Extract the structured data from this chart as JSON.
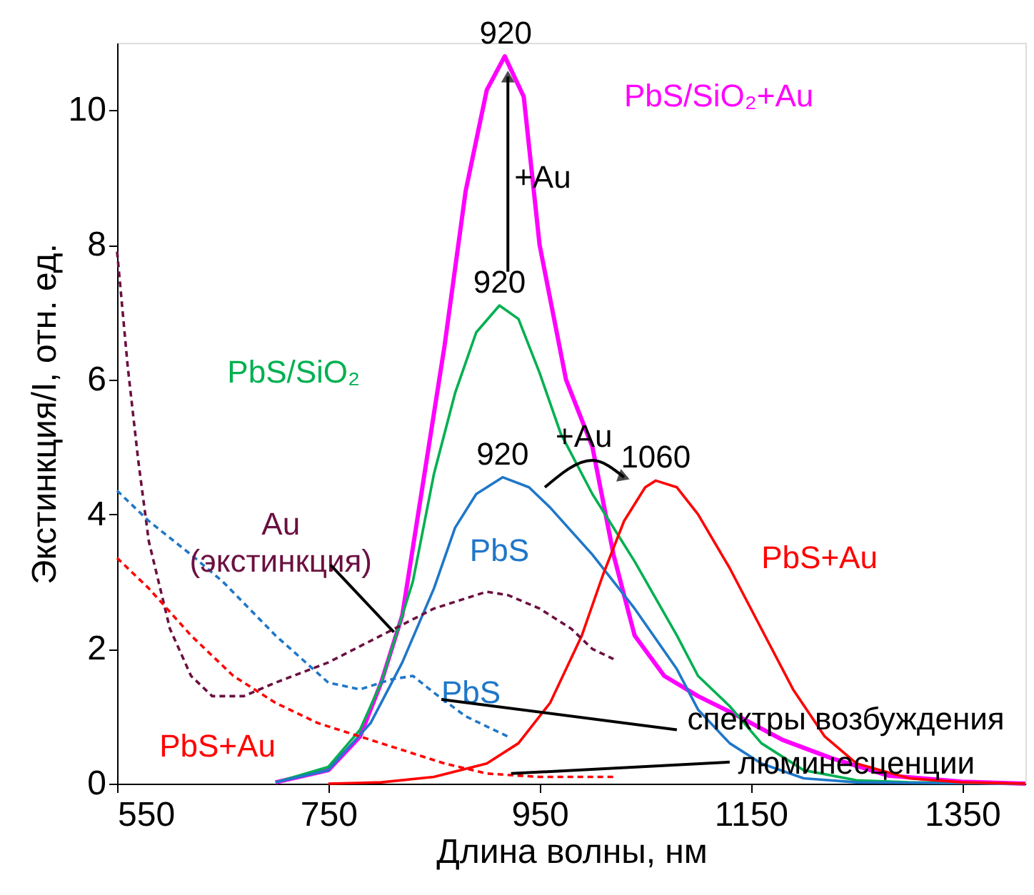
{
  "chart_data": {
    "type": "line",
    "xlabel": "Длина волны, нм",
    "ylabel": "Экстинкция/I, отн. ед.",
    "xlim": [
      550,
      1410
    ],
    "xticks": [
      550,
      750,
      950,
      1150,
      1350
    ],
    "ylim": [
      0,
      11
    ],
    "yticks": [
      0,
      2,
      4,
      6,
      8,
      10
    ],
    "marker": "none",
    "series": [
      {
        "name": "PbS/SiO₂+Au",
        "color": "#ff00ff",
        "line_style": "solid",
        "x": [
          700,
          750,
          780,
          800,
          820,
          845,
          860,
          880,
          900,
          917,
          935,
          950,
          975,
          1000,
          1020,
          1040,
          1068,
          1100,
          1131,
          1180,
          1226,
          1280,
          1350,
          1410
        ],
        "values": [
          0.02,
          0.2,
          0.7,
          1.5,
          2.5,
          5.0,
          6.5,
          8.8,
          10.3,
          10.8,
          10.2,
          8.0,
          6.0,
          5.0,
          3.4,
          2.2,
          1.6,
          1.3,
          1.06,
          0.65,
          0.38,
          0.12,
          0.03,
          0
        ]
      },
      {
        "name": "PbS/SiO₂",
        "color": "#00b050",
        "line_style": "solid",
        "x": [
          700,
          750,
          780,
          800,
          830,
          850,
          870,
          890,
          912,
          930,
          950,
          970,
          1000,
          1040,
          1080,
          1100,
          1130,
          1160,
          1200,
          1250,
          1300,
          1410
        ],
        "values": [
          0.02,
          0.25,
          0.8,
          1.5,
          3.0,
          4.6,
          5.8,
          6.7,
          7.1,
          6.9,
          6.1,
          5.2,
          4.3,
          3.3,
          2.2,
          1.6,
          1.15,
          0.6,
          0.2,
          0.05,
          0.02,
          0
        ]
      },
      {
        "name": "PbS",
        "color": "#1f77c8",
        "line_style": "solid",
        "x": [
          700,
          750,
          790,
          820,
          850,
          870,
          890,
          915,
          940,
          960,
          1000,
          1040,
          1080,
          1100,
          1130,
          1160,
          1200,
          1250,
          1410
        ],
        "values": [
          0.02,
          0.2,
          0.9,
          1.8,
          2.9,
          3.8,
          4.3,
          4.55,
          4.4,
          4.1,
          3.4,
          2.6,
          1.7,
          1.1,
          0.6,
          0.3,
          0.08,
          0.02,
          0
        ]
      },
      {
        "name": "PbS+Au",
        "color": "#ff0000",
        "line_style": "solid",
        "x": [
          750,
          800,
          850,
          900,
          930,
          960,
          990,
          1010,
          1030,
          1050,
          1060,
          1080,
          1100,
          1130,
          1160,
          1190,
          1220,
          1250,
          1300,
          1350,
          1410
        ],
        "values": [
          0.0,
          0.02,
          0.1,
          0.3,
          0.6,
          1.2,
          2.2,
          3.1,
          3.9,
          4.4,
          4.5,
          4.4,
          4.0,
          3.2,
          2.3,
          1.4,
          0.7,
          0.3,
          0.08,
          0.02,
          0
        ]
      },
      {
        "name": "Au (экстинкция)",
        "color": "#6b1040",
        "line_style": "dashed",
        "x": [
          550,
          560,
          570,
          580,
          600,
          620,
          640,
          670,
          700,
          750,
          800,
          850,
          900,
          920,
          950,
          980,
          1000,
          1020
        ],
        "values": [
          7.9,
          6.2,
          4.8,
          3.6,
          2.3,
          1.6,
          1.3,
          1.3,
          1.5,
          1.8,
          2.2,
          2.6,
          2.85,
          2.8,
          2.6,
          2.3,
          2.0,
          1.85
        ]
      },
      {
        "name": "PbS",
        "color": "#1f77c8",
        "line_style": "dashed",
        "x": [
          550,
          580,
          620,
          650,
          700,
          750,
          780,
          810,
          830,
          850,
          880,
          920
        ],
        "values": [
          4.35,
          3.9,
          3.4,
          3.0,
          2.2,
          1.5,
          1.4,
          1.55,
          1.6,
          1.35,
          1.0,
          0.7
        ]
      },
      {
        "name": "PbS+Au",
        "color": "#ff0000",
        "line_style": "dashed",
        "x": [
          550,
          580,
          620,
          660,
          700,
          740,
          780,
          820,
          860,
          900,
          950,
          1000,
          1020
        ],
        "values": [
          3.35,
          2.9,
          2.2,
          1.6,
          1.2,
          0.9,
          0.7,
          0.5,
          0.3,
          0.15,
          0.1,
          0.1,
          0.1
        ]
      }
    ],
    "annotations": [
      {
        "text": "920",
        "x": 918,
        "y": 10.8
      },
      {
        "text": "920",
        "x": 912,
        "y": 7.1
      },
      {
        "text": "920",
        "x": 915,
        "y": 4.55
      },
      {
        "text": "1060",
        "x": 1060,
        "y": 4.5
      },
      "+Au",
      "+Au",
      {
        "text": "спектры возбуждения",
        "x": 857,
        "y": 1.25
      },
      {
        "text": "люминесценции",
        "x": 923,
        "y": 0.15
      }
    ]
  }
}
